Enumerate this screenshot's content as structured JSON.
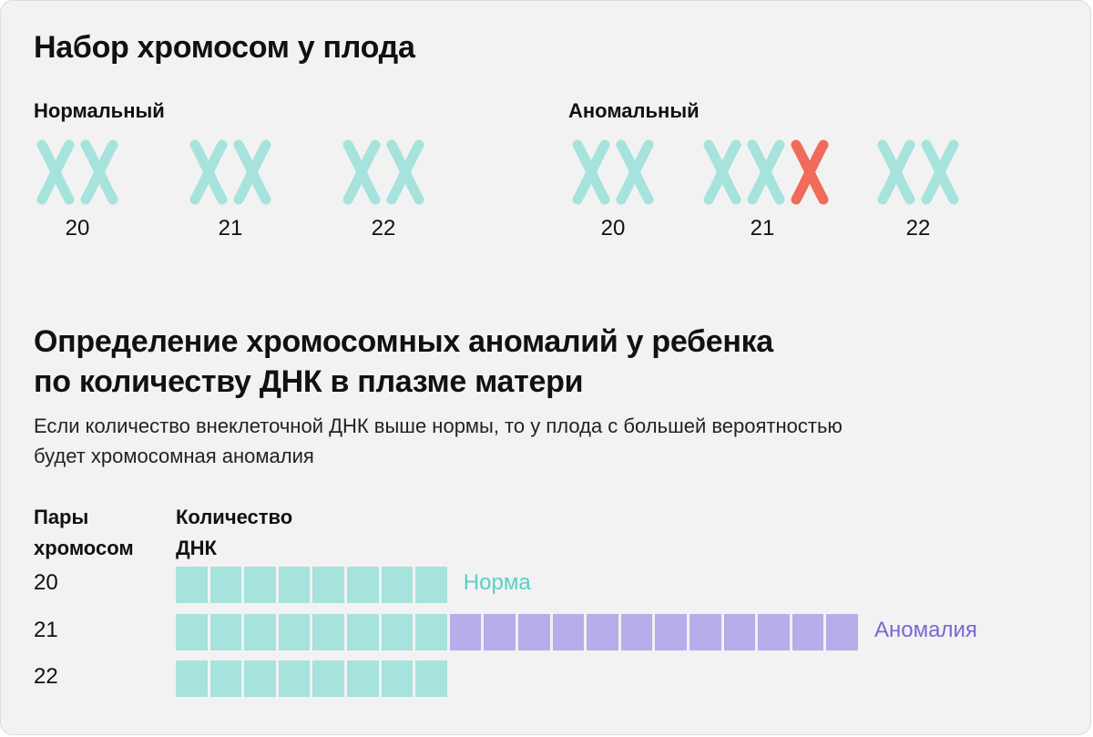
{
  "title": "Набор хромосом у плода",
  "colors": {
    "normal": "#a6e3dd",
    "abnormal": "#f06b5a",
    "excess_dna": "#b7adea",
    "norma_text": "#5ccfc4",
    "anomaly_text": "#7a66d6"
  },
  "karyotype": {
    "normal": {
      "label": "Нормальный",
      "pairs": [
        {
          "number": "20",
          "chromosomes": [
            "normal",
            "normal"
          ]
        },
        {
          "number": "21",
          "chromosomes": [
            "normal",
            "normal"
          ]
        },
        {
          "number": "22",
          "chromosomes": [
            "normal",
            "normal"
          ]
        }
      ]
    },
    "abnormal": {
      "label": "Аномальный",
      "pairs": [
        {
          "number": "20",
          "chromosomes": [
            "normal",
            "normal"
          ]
        },
        {
          "number": "21",
          "chromosomes": [
            "normal",
            "normal",
            "abnormal"
          ]
        },
        {
          "number": "22",
          "chromosomes": [
            "normal",
            "normal"
          ]
        }
      ]
    }
  },
  "section2": {
    "title_line1": "Определение хромосомных аномалий у ребенка",
    "title_line2": "по количеству ДНК в плазме матери",
    "desc_line1": "Если количество внеклеточной ДНК выше нормы, то у плода с большей вероятностью",
    "desc_line2": "будет хромосомная аномалия"
  },
  "chart_data": {
    "type": "bar",
    "column_headers": {
      "pairs_line1": "Пары",
      "pairs_line2": "хромосом",
      "dna_line1": "Количество",
      "dna_line2": "ДНК"
    },
    "rows": [
      {
        "label": "20",
        "normal_units": 8,
        "excess_units": 0,
        "annotation": "Норма"
      },
      {
        "label": "21",
        "normal_units": 8,
        "excess_units": 12,
        "annotation": "Аномалия"
      },
      {
        "label": "22",
        "normal_units": 8,
        "excess_units": 0,
        "annotation": ""
      }
    ]
  }
}
